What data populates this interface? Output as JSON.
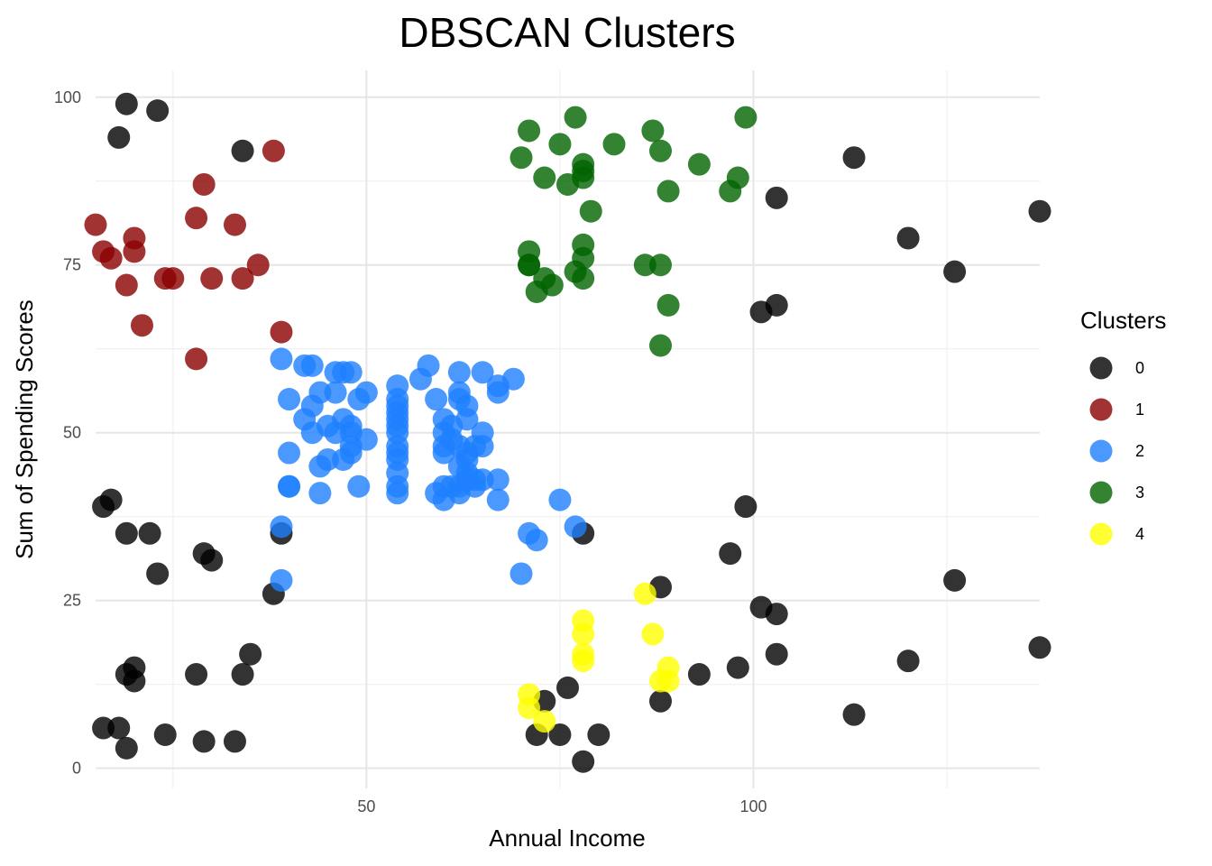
{
  "chart_data": {
    "type": "scatter",
    "title": "DBSCAN Clusters",
    "xlabel": "Annual Income",
    "ylabel": "Sum of Spending Scores",
    "xlim": [
      15,
      137
    ],
    "ylim": [
      -3,
      104
    ],
    "x_ticks": [
      50,
      100
    ],
    "y_ticks": [
      0,
      25,
      50,
      75,
      100
    ],
    "grid": true,
    "legend": {
      "title": "Clusters",
      "placement": "right"
    },
    "series": [
      {
        "name": "0",
        "color": "#000000",
        "points": [
          [
            19,
            99
          ],
          [
            23,
            98
          ],
          [
            18,
            94
          ],
          [
            34,
            92
          ],
          [
            113,
            91
          ],
          [
            103,
            85
          ],
          [
            137,
            83
          ],
          [
            120,
            79
          ],
          [
            126,
            74
          ],
          [
            101,
            68
          ],
          [
            103,
            69
          ],
          [
            16,
            39
          ],
          [
            17,
            40
          ],
          [
            19,
            35
          ],
          [
            22,
            35
          ],
          [
            29,
            32
          ],
          [
            30,
            31
          ],
          [
            23,
            29
          ],
          [
            39,
            35
          ],
          [
            38,
            26
          ],
          [
            78,
            35
          ],
          [
            99,
            39
          ],
          [
            97,
            32
          ],
          [
            88,
            27
          ],
          [
            126,
            28
          ],
          [
            101,
            24
          ],
          [
            103,
            23
          ],
          [
            20,
            15
          ],
          [
            19,
            14
          ],
          [
            20,
            13
          ],
          [
            28,
            14
          ],
          [
            34,
            14
          ],
          [
            35,
            17
          ],
          [
            137,
            18
          ],
          [
            103,
            17
          ],
          [
            120,
            16
          ],
          [
            98,
            15
          ],
          [
            93,
            14
          ],
          [
            76,
            12
          ],
          [
            73,
            10
          ],
          [
            88,
            10
          ],
          [
            113,
            8
          ],
          [
            16,
            6
          ],
          [
            18,
            6
          ],
          [
            19,
            3
          ],
          [
            24,
            5
          ],
          [
            29,
            4
          ],
          [
            33,
            4
          ],
          [
            72,
            5
          ],
          [
            75,
            5
          ],
          [
            80,
            5
          ],
          [
            78,
            1
          ]
        ]
      },
      {
        "name": "1",
        "color": "#8b0000",
        "points": [
          [
            15,
            81
          ],
          [
            16,
            77
          ],
          [
            17,
            76
          ],
          [
            19,
            72
          ],
          [
            20,
            79
          ],
          [
            20,
            77
          ],
          [
            21,
            66
          ],
          [
            24,
            73
          ],
          [
            25,
            73
          ],
          [
            28,
            82
          ],
          [
            29,
            87
          ],
          [
            30,
            73
          ],
          [
            33,
            81
          ],
          [
            34,
            73
          ],
          [
            36,
            75
          ],
          [
            38,
            92
          ],
          [
            39,
            65
          ],
          [
            28,
            61
          ]
        ]
      },
      {
        "name": "2",
        "color": "#1e7fff",
        "points": [
          [
            39,
            61
          ],
          [
            42,
            60
          ],
          [
            43,
            60
          ],
          [
            46,
            59
          ],
          [
            47,
            59
          ],
          [
            48,
            59
          ],
          [
            58,
            60
          ],
          [
            62,
            59
          ],
          [
            65,
            59
          ],
          [
            69,
            58
          ],
          [
            67,
            57
          ],
          [
            67,
            56
          ],
          [
            57,
            58
          ],
          [
            54,
            57
          ],
          [
            40,
            55
          ],
          [
            43,
            54
          ],
          [
            44,
            56
          ],
          [
            46,
            56
          ],
          [
            49,
            55
          ],
          [
            50,
            56
          ],
          [
            54,
            55
          ],
          [
            54,
            54
          ],
          [
            59,
            55
          ],
          [
            62,
            56
          ],
          [
            62,
            55
          ],
          [
            63,
            54
          ],
          [
            54,
            53
          ],
          [
            54,
            52
          ],
          [
            42,
            52
          ],
          [
            43,
            50
          ],
          [
            45,
            51
          ],
          [
            47,
            52
          ],
          [
            48,
            51
          ],
          [
            50,
            49
          ],
          [
            46,
            50
          ],
          [
            48,
            50
          ],
          [
            54,
            51
          ],
          [
            54,
            50
          ],
          [
            60,
            52
          ],
          [
            60,
            50
          ],
          [
            61,
            51
          ],
          [
            63,
            52
          ],
          [
            65,
            50
          ],
          [
            40,
            47
          ],
          [
            44,
            45
          ],
          [
            45,
            46
          ],
          [
            47,
            46
          ],
          [
            48,
            47
          ],
          [
            48,
            48
          ],
          [
            54,
            48
          ],
          [
            54,
            47
          ],
          [
            54,
            46
          ],
          [
            54,
            44
          ],
          [
            54,
            42
          ],
          [
            54,
            41
          ],
          [
            60,
            48
          ],
          [
            60,
            47
          ],
          [
            61,
            49
          ],
          [
            62,
            48
          ],
          [
            63,
            47
          ],
          [
            64,
            48
          ],
          [
            65,
            48
          ],
          [
            63,
            46
          ],
          [
            62,
            45
          ],
          [
            63,
            44
          ],
          [
            40,
            42
          ],
          [
            40,
            42
          ],
          [
            44,
            41
          ],
          [
            49,
            42
          ],
          [
            59,
            41
          ],
          [
            60,
            42
          ],
          [
            60,
            40
          ],
          [
            61,
            42
          ],
          [
            62,
            42
          ],
          [
            62,
            41
          ],
          [
            63,
            43
          ],
          [
            64,
            43
          ],
          [
            64,
            42
          ],
          [
            65,
            43
          ],
          [
            67,
            43
          ],
          [
            67,
            40
          ],
          [
            39,
            36
          ],
          [
            39,
            28
          ],
          [
            71,
            35
          ],
          [
            72,
            34
          ],
          [
            75,
            40
          ],
          [
            77,
            36
          ],
          [
            70,
            29
          ]
        ]
      },
      {
        "name": "3",
        "color": "#006400",
        "points": [
          [
            71,
            95
          ],
          [
            77,
            97
          ],
          [
            87,
            95
          ],
          [
            99,
            97
          ],
          [
            75,
            93
          ],
          [
            82,
            93
          ],
          [
            88,
            92
          ],
          [
            70,
            91
          ],
          [
            73,
            88
          ],
          [
            78,
            90
          ],
          [
            78,
            89
          ],
          [
            76,
            87
          ],
          [
            78,
            88
          ],
          [
            93,
            90
          ],
          [
            98,
            88
          ],
          [
            97,
            86
          ],
          [
            89,
            86
          ],
          [
            79,
            83
          ],
          [
            71,
            77
          ],
          [
            78,
            78
          ],
          [
            78,
            76
          ],
          [
            71,
            75
          ],
          [
            71,
            75
          ],
          [
            86,
            75
          ],
          [
            88,
            75
          ],
          [
            77,
            74
          ],
          [
            78,
            73
          ],
          [
            73,
            73
          ],
          [
            74,
            72
          ],
          [
            72,
            71
          ],
          [
            89,
            69
          ],
          [
            88,
            63
          ]
        ]
      },
      {
        "name": "4",
        "color": "#ffff00",
        "points": [
          [
            86,
            26
          ],
          [
            78,
            22
          ],
          [
            78,
            20
          ],
          [
            87,
            20
          ],
          [
            78,
            17
          ],
          [
            78,
            16
          ],
          [
            89,
            15
          ],
          [
            88,
            13
          ],
          [
            89,
            13
          ],
          [
            71,
            11
          ],
          [
            71,
            9
          ],
          [
            73,
            7
          ]
        ]
      }
    ]
  }
}
